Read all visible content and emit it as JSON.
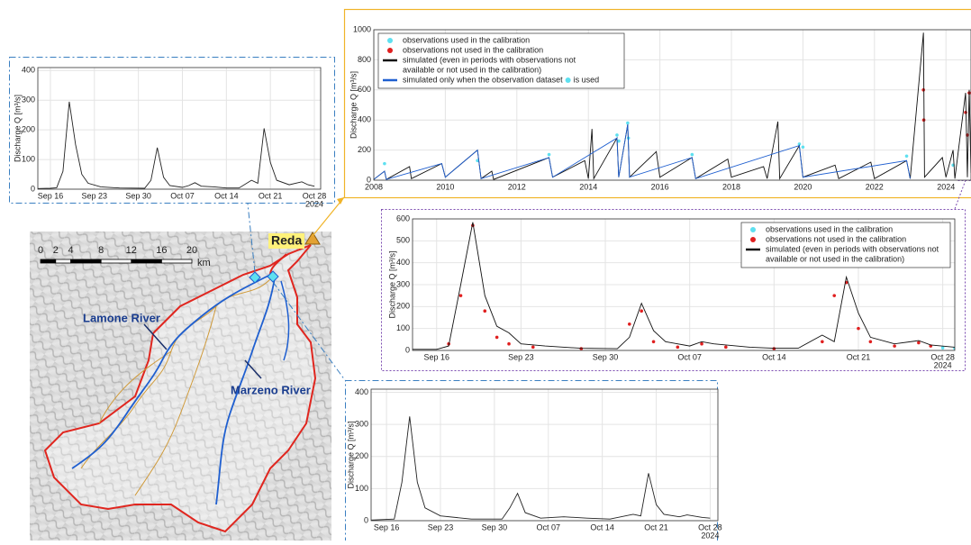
{
  "chart_data": [
    {
      "type": "line",
      "ylabel": "Discharge Q [m³/s]",
      "x_year_label": "2024",
      "grid": true,
      "color": "#222222",
      "mode": "lines",
      "xlim": [
        "2024-09-14",
        "2024-10-29"
      ],
      "ylim": [
        0,
        410
      ],
      "yticks": [
        0,
        100,
        200,
        300,
        400
      ],
      "xticks": [
        {
          "value": "2024-09-16",
          "label": "Sep 16"
        },
        {
          "value": "2024-09-23",
          "label": "Sep 23"
        },
        {
          "value": "2024-09-30",
          "label": "Sep 30"
        },
        {
          "value": "2024-10-07",
          "label": "Oct 07"
        },
        {
          "value": "2024-10-14",
          "label": "Oct 14"
        },
        {
          "value": "2024-10-21",
          "label": "Oct 21"
        },
        {
          "value": "2024-10-28",
          "label": "Oct 28"
        }
      ],
      "x": [
        "2024-09-14",
        "2024-09-16",
        "2024-09-17",
        "2024-09-18",
        "2024-09-19",
        "2024-09-20",
        "2024-09-21",
        "2024-09-22",
        "2024-09-24",
        "2024-09-27",
        "2024-10-01",
        "2024-10-02",
        "2024-10-03",
        "2024-10-04",
        "2024-10-05",
        "2024-10-07",
        "2024-10-08",
        "2024-10-09",
        "2024-10-10",
        "2024-10-12",
        "2024-10-14",
        "2024-10-16",
        "2024-10-18",
        "2024-10-19",
        "2024-10-20",
        "2024-10-21",
        "2024-10-22",
        "2024-10-24",
        "2024-10-26",
        "2024-10-27",
        "2024-10-28"
      ],
      "values": [
        2,
        3,
        5,
        60,
        295,
        150,
        50,
        20,
        8,
        4,
        3,
        30,
        140,
        40,
        12,
        6,
        12,
        22,
        10,
        8,
        4,
        4,
        30,
        20,
        205,
        90,
        30,
        15,
        25,
        15,
        10
      ]
    },
    {
      "type": "line",
      "ylabel": "Discharge Q [m³/s]",
      "grid": true,
      "legend": "upper left",
      "xlim": [
        2008,
        2024.7
      ],
      "ylim": [
        0,
        1000
      ],
      "yticks": [
        0,
        200,
        400,
        600,
        800,
        1000
      ],
      "xticks": [
        2008,
        2010,
        2012,
        2014,
        2016,
        2018,
        2020,
        2022,
        2024
      ],
      "series": [
        {
          "name": [
            "observations used in the calibration"
          ],
          "color": "#5ee0f0",
          "mode": "markers",
          "x": [
            2008.3,
            2010.9,
            2012.9,
            2014.8,
            2014.85,
            2015.1,
            2015.12,
            2016.9,
            2019.9,
            2020.0,
            2022.9,
            2024.2
          ],
          "values": [
            110,
            130,
            170,
            300,
            260,
            380,
            280,
            170,
            240,
            220,
            160,
            100
          ]
        },
        {
          "name": [
            "observations not used in the calibration"
          ],
          "color": "#e02020",
          "mode": "markers",
          "x": [
            2023.37,
            2023.38,
            2024.55,
            2024.6,
            2024.65
          ],
          "values": [
            600,
            400,
            450,
            300,
            580
          ]
        },
        {
          "name": [
            "simulated (even in periods with observations not",
            "available or not used in the calibration)"
          ],
          "color": "#111111",
          "mode": "lines",
          "x": [
            2008,
            2008.3,
            2008.35,
            2009.0,
            2009.05,
            2009.9,
            2010.0,
            2010.9,
            2011.0,
            2011.3,
            2011.35,
            2012.9,
            2013.0,
            2013.9,
            2014.0,
            2014.1,
            2014.15,
            2014.8,
            2014.85,
            2015.1,
            2015.15,
            2015.9,
            2016.0,
            2016.9,
            2017.0,
            2017.9,
            2018.0,
            2018.9,
            2019.0,
            2019.3,
            2019.35,
            2019.9,
            2020.0,
            2020.9,
            2021.0,
            2021.9,
            2022.0,
            2022.9,
            2023.0,
            2023.37,
            2023.4,
            2023.9,
            2024.0,
            2024.2,
            2024.25,
            2024.55,
            2024.6,
            2024.65,
            2024.7
          ],
          "values": [
            5,
            60,
            5,
            90,
            10,
            110,
            20,
            200,
            10,
            60,
            5,
            150,
            20,
            130,
            10,
            340,
            10,
            280,
            20,
            370,
            20,
            190,
            20,
            150,
            10,
            140,
            20,
            90,
            10,
            390,
            10,
            230,
            20,
            100,
            10,
            120,
            10,
            130,
            10,
            980,
            20,
            150,
            20,
            200,
            10,
            580,
            20,
            600,
            50
          ]
        },
        {
          "name": [
            "simulated only when the observation dataset"
          ],
          "name_suffix": "is used",
          "color": "#1f5fd0",
          "mode": "lines",
          "x": [
            2008,
            2008.3,
            2008.35,
            2009.9,
            2010.0,
            2010.9,
            2011.0,
            2012.9,
            2013.0,
            2014.8,
            2014.85,
            2015.1,
            2015.15,
            2016.9,
            2017.0,
            2019.9,
            2020.0,
            2022.9,
            2023.0
          ],
          "values": [
            5,
            60,
            5,
            110,
            20,
            200,
            10,
            150,
            20,
            280,
            20,
            370,
            20,
            150,
            10,
            230,
            20,
            130,
            10
          ]
        }
      ]
    },
    {
      "type": "line",
      "ylabel": "Discharge Q [m³/s]",
      "x_year_label": "2024",
      "grid": true,
      "legend": "upper right",
      "xlim": [
        "2024-09-14",
        "2024-10-29"
      ],
      "ylim": [
        0,
        600
      ],
      "yticks": [
        0,
        100,
        200,
        300,
        400,
        500,
        600
      ],
      "xticks": [
        {
          "value": "2024-09-16",
          "label": "Sep 16"
        },
        {
          "value": "2024-09-23",
          "label": "Sep 23"
        },
        {
          "value": "2024-09-30",
          "label": "Sep 30"
        },
        {
          "value": "2024-10-07",
          "label": "Oct 07"
        },
        {
          "value": "2024-10-14",
          "label": "Oct 14"
        },
        {
          "value": "2024-10-21",
          "label": "Oct 21"
        },
        {
          "value": "2024-10-28",
          "label": "Oct 28"
        }
      ],
      "series": [
        {
          "name": [
            "observations used in the calibration"
          ],
          "color": "#5ee0f0",
          "mode": "markers",
          "x": [
            "2024-10-28",
            "2024-10-29"
          ],
          "values": [
            12,
            10
          ]
        },
        {
          "name": [
            "observations not used in the calibration"
          ],
          "color": "#e02020",
          "mode": "markers",
          "x": [
            "2024-09-17",
            "2024-09-18",
            "2024-09-19",
            "2024-09-20",
            "2024-09-21",
            "2024-09-22",
            "2024-09-24",
            "2024-09-28",
            "2024-10-02",
            "2024-10-03",
            "2024-10-04",
            "2024-10-06",
            "2024-10-08",
            "2024-10-10",
            "2024-10-14",
            "2024-10-18",
            "2024-10-19",
            "2024-10-20",
            "2024-10-21",
            "2024-10-22",
            "2024-10-24",
            "2024-10-26",
            "2024-10-27"
          ],
          "values": [
            30,
            250,
            570,
            180,
            60,
            30,
            15,
            8,
            120,
            180,
            40,
            15,
            30,
            15,
            8,
            40,
            250,
            310,
            100,
            40,
            20,
            35,
            20
          ]
        },
        {
          "name": [
            "simulated (even in periods with observations not",
            "available or not used in the calibration)"
          ],
          "color": "#111111",
          "mode": "lines",
          "x": [
            "2024-09-14",
            "2024-09-16",
            "2024-09-17",
            "2024-09-18",
            "2024-09-19",
            "2024-09-20",
            "2024-09-21",
            "2024-09-22",
            "2024-09-23",
            "2024-09-25",
            "2024-09-28",
            "2024-10-01",
            "2024-10-02",
            "2024-10-03",
            "2024-10-04",
            "2024-10-05",
            "2024-10-07",
            "2024-10-08",
            "2024-10-09",
            "2024-10-10",
            "2024-10-12",
            "2024-10-14",
            "2024-10-16",
            "2024-10-18",
            "2024-10-19",
            "2024-10-20",
            "2024-10-21",
            "2024-10-22",
            "2024-10-24",
            "2024-10-26",
            "2024-10-27",
            "2024-10-29"
          ],
          "values": [
            5,
            5,
            20,
            300,
            585,
            250,
            110,
            80,
            30,
            20,
            10,
            8,
            60,
            215,
            90,
            40,
            20,
            40,
            30,
            25,
            15,
            10,
            10,
            70,
            40,
            335,
            170,
            60,
            30,
            45,
            25,
            15
          ]
        }
      ]
    },
    {
      "type": "line",
      "ylabel": "Discharge Q [m³/s]",
      "x_year_label": "2024",
      "grid": true,
      "color": "#222222",
      "mode": "lines",
      "xlim": [
        "2024-09-14",
        "2024-10-29"
      ],
      "ylim": [
        0,
        410
      ],
      "yticks": [
        0,
        100,
        200,
        300,
        400
      ],
      "xticks": [
        {
          "value": "2024-09-16",
          "label": "Sep 16"
        },
        {
          "value": "2024-09-23",
          "label": "Sep 23"
        },
        {
          "value": "2024-09-30",
          "label": "Sep 30"
        },
        {
          "value": "2024-10-07",
          "label": "Oct 07"
        },
        {
          "value": "2024-10-14",
          "label": "Oct 14"
        },
        {
          "value": "2024-10-21",
          "label": "Oct 21"
        },
        {
          "value": "2024-10-28",
          "label": "Oct 28"
        }
      ],
      "x": [
        "2024-09-14",
        "2024-09-17",
        "2024-09-18",
        "2024-09-19",
        "2024-09-20",
        "2024-09-21",
        "2024-09-23",
        "2024-09-27",
        "2024-10-01",
        "2024-10-02",
        "2024-10-03",
        "2024-10-04",
        "2024-10-06",
        "2024-10-09",
        "2024-10-12",
        "2024-10-15",
        "2024-10-18",
        "2024-10-19",
        "2024-10-20",
        "2024-10-21",
        "2024-10-22",
        "2024-10-24",
        "2024-10-25",
        "2024-10-27",
        "2024-10-28"
      ],
      "values": [
        2,
        5,
        120,
        325,
        120,
        40,
        15,
        5,
        5,
        40,
        85,
        25,
        8,
        12,
        8,
        5,
        20,
        15,
        148,
        50,
        20,
        12,
        18,
        10,
        8
      ]
    }
  ],
  "map": {
    "station": "Reda",
    "rivers": [
      "Lamone River",
      "Marzeno River"
    ],
    "scale_ticks": [
      0,
      2,
      4,
      8,
      12,
      16,
      20
    ],
    "scale_unit": "km"
  }
}
